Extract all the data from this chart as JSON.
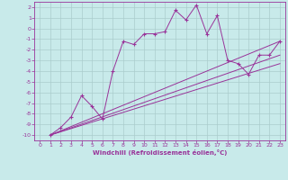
{
  "xlabel": "Windchill (Refroidissement éolien,°C)",
  "bg_color": "#c8eaea",
  "line_color": "#993399",
  "grid_color": "#aacccc",
  "xlim": [
    -0.5,
    23.5
  ],
  "ylim": [
    -10.5,
    2.5
  ],
  "xticks": [
    0,
    1,
    2,
    3,
    4,
    5,
    6,
    7,
    8,
    9,
    10,
    11,
    12,
    13,
    14,
    15,
    16,
    17,
    18,
    19,
    20,
    21,
    22,
    23
  ],
  "yticks": [
    2,
    1,
    0,
    -1,
    -2,
    -3,
    -4,
    -5,
    -6,
    -7,
    -8,
    -9,
    -10
  ],
  "line1_x": [
    1,
    2,
    3,
    4,
    5,
    6,
    7,
    8,
    9,
    10,
    11,
    12,
    13,
    14,
    15,
    16,
    17,
    18,
    19,
    20,
    21,
    22,
    23
  ],
  "line1_y": [
    -10,
    -9.3,
    -8.3,
    -6.3,
    -7.3,
    -8.5,
    -4.0,
    -1.2,
    -1.5,
    -0.5,
    -0.5,
    -0.3,
    1.7,
    0.8,
    2.2,
    -0.5,
    1.2,
    -3.0,
    -3.3,
    -4.3,
    -2.5,
    -2.5,
    -1.2
  ],
  "line2_x": [
    1,
    23
  ],
  "line2_y": [
    -10,
    -1.2
  ],
  "line3_x": [
    1,
    23
  ],
  "line3_y": [
    -10,
    -2.5
  ],
  "line4_x": [
    1,
    23
  ],
  "line4_y": [
    -10,
    -3.3
  ],
  "tick_fontsize": 4.5,
  "xlabel_fontsize": 5.0,
  "xlabel_fontweight": "bold"
}
